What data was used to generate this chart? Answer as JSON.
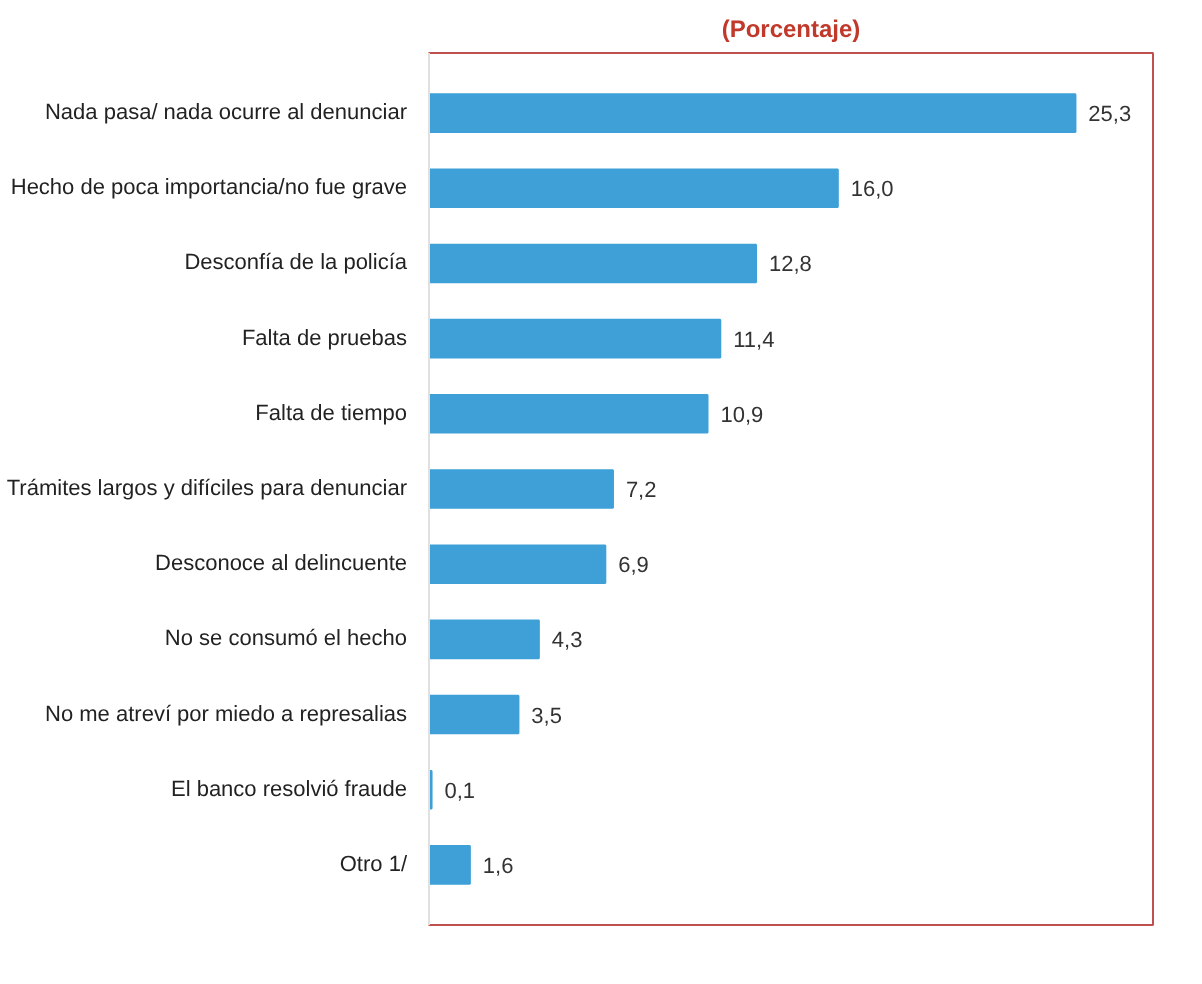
{
  "chart_data": {
    "type": "bar",
    "orientation": "horizontal",
    "title": "(Porcentaje)",
    "categories": [
      "Nada pasa/ nada ocurre al denunciar",
      "Hecho de poca importancia/no fue grave",
      "Desconfía de la policía",
      "Falta de pruebas",
      "Falta de tiempo",
      "Trámites largos y difíciles para denunciar",
      "Desconoce al delincuente",
      "No se consumó el hecho",
      "No me atreví por miedo a represalias",
      "El banco resolvió fraude",
      "Otro 1/"
    ],
    "values": [
      25.3,
      16.0,
      12.8,
      11.4,
      10.9,
      7.2,
      6.9,
      4.3,
      3.5,
      0.1,
      1.6
    ],
    "value_labels": [
      "25,3",
      "16,0",
      "12,8",
      "11,4",
      "10,9",
      "7,2",
      "6,9",
      "4,3",
      "3,5",
      "0,1",
      "1,6"
    ],
    "color": "#3fa0d8",
    "grid": false
  }
}
